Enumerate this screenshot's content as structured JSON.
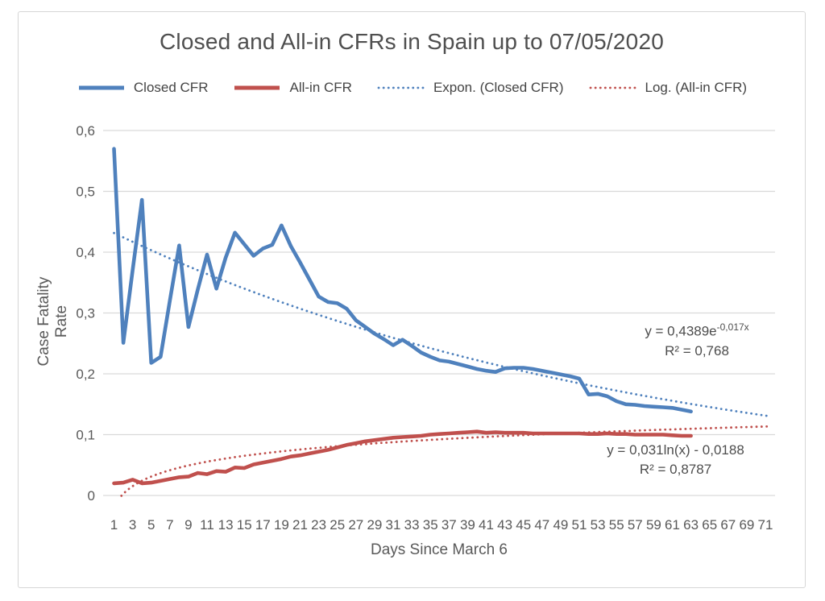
{
  "chart": {
    "title": "Closed and All-in CFRs in Spain up to 07/05/2020",
    "colors": {
      "closed_cfr": "#4F81BD",
      "all_in_cfr": "#C0504D",
      "gridline": "#D9D9D9",
      "tick_text": "#595959",
      "title_text": "#4f4f4f",
      "annotation_text": "#4d4d4d"
    },
    "legend": [
      {
        "label": "Closed CFR",
        "color": "#4F81BD",
        "style": "solid"
      },
      {
        "label": "All-in CFR",
        "color": "#C0504D",
        "style": "solid"
      },
      {
        "label": "Expon. (Closed CFR)",
        "color": "#4F81BD",
        "style": "dotted"
      },
      {
        "label": "Log. (All-in CFR)",
        "color": "#C0504D",
        "style": "dotted"
      }
    ],
    "y_axis": {
      "title": "Case Fatality Rate",
      "tick_labels": [
        "0",
        "0,1",
        "0,2",
        "0,3",
        "0,4",
        "0,5",
        "0,6"
      ],
      "min": 0,
      "max": 0.6
    },
    "x_axis": {
      "title": "Days Since March 6",
      "tick_labels": [
        1,
        3,
        5,
        7,
        9,
        11,
        13,
        15,
        17,
        19,
        21,
        23,
        25,
        27,
        29,
        31,
        33,
        35,
        37,
        39,
        41,
        43,
        45,
        47,
        49,
        51,
        53,
        55,
        57,
        59,
        61,
        63,
        65,
        67,
        69,
        71
      ]
    },
    "annotations": {
      "expon": {
        "eq_base": "y = 0,4389e",
        "eq_sup": "-0,017x",
        "r2": "R² = 0,768"
      },
      "log": {
        "eq": "y = 0,031ln(x) - 0,0188",
        "r2": "R² = 0,8787"
      }
    }
  },
  "chart_data": {
    "type": "line",
    "title": "Closed and All-in CFRs in Spain up to 07/05/2020",
    "xlabel": "Days Since March 6",
    "ylabel": "Case Fatality Rate",
    "ylim": [
      0,
      0.6
    ],
    "grid": true,
    "legend_position": "top",
    "x": [
      1,
      2,
      3,
      4,
      5,
      6,
      7,
      8,
      9,
      10,
      11,
      12,
      13,
      14,
      15,
      16,
      17,
      18,
      19,
      20,
      21,
      22,
      23,
      24,
      25,
      26,
      27,
      28,
      29,
      30,
      31,
      32,
      33,
      34,
      35,
      36,
      37,
      38,
      39,
      40,
      41,
      42,
      43,
      44,
      45,
      46,
      47,
      48,
      49,
      50,
      51,
      52,
      53,
      54,
      55,
      56,
      57,
      58,
      59,
      60,
      61,
      62,
      63
    ],
    "series": [
      {
        "name": "Closed CFR",
        "color": "#4F81BD",
        "values": [
          0.57,
          0.251,
          0.37,
          0.486,
          0.218,
          0.228,
          0.32,
          0.411,
          0.277,
          0.338,
          0.396,
          0.34,
          0.391,
          0.432,
          0.413,
          0.394,
          0.406,
          0.412,
          0.444,
          0.41,
          0.383,
          0.355,
          0.327,
          0.318,
          0.316,
          0.307,
          0.288,
          0.277,
          0.266,
          0.257,
          0.247,
          0.256,
          0.246,
          0.235,
          0.228,
          0.222,
          0.22,
          0.216,
          0.212,
          0.208,
          0.205,
          0.203,
          0.209,
          0.21,
          0.21,
          0.208,
          0.205,
          0.202,
          0.199,
          0.196,
          0.192,
          0.166,
          0.167,
          0.163,
          0.155,
          0.15,
          0.149,
          0.147,
          0.146,
          0.145,
          0.144,
          0.141,
          0.138
        ]
      },
      {
        "name": "All-in CFR",
        "color": "#C0504D",
        "values": [
          0.02,
          0.021,
          0.026,
          0.02,
          0.021,
          0.024,
          0.027,
          0.03,
          0.031,
          0.037,
          0.035,
          0.04,
          0.039,
          0.046,
          0.045,
          0.051,
          0.054,
          0.057,
          0.06,
          0.064,
          0.066,
          0.069,
          0.072,
          0.075,
          0.079,
          0.083,
          0.086,
          0.089,
          0.091,
          0.093,
          0.095,
          0.096,
          0.097,
          0.098,
          0.1,
          0.101,
          0.102,
          0.103,
          0.104,
          0.105,
          0.103,
          0.104,
          0.103,
          0.103,
          0.103,
          0.102,
          0.102,
          0.102,
          0.102,
          0.102,
          0.102,
          0.101,
          0.101,
          0.102,
          0.101,
          0.101,
          0.1,
          0.1,
          0.1,
          0.1,
          0.099,
          0.098,
          0.098
        ]
      },
      {
        "name": "Expon. (Closed CFR)",
        "type": "trendline",
        "kind": "expon",
        "color": "#4F81BD",
        "formula": "y = 0,4389e^(-0,017x)",
        "a": 0.4389,
        "b": -0.017,
        "r_squared": 0.768,
        "x_start": 1,
        "x_end": 71.6
      },
      {
        "name": "Log. (All-in CFR)",
        "type": "trendline",
        "kind": "log",
        "color": "#C0504D",
        "formula": "y = 0,031ln(x) - 0,0188",
        "a": 0.031,
        "b": -0.0188,
        "r_squared": 0.8787,
        "x_start": 1.8,
        "x_end": 71.6
      }
    ]
  }
}
